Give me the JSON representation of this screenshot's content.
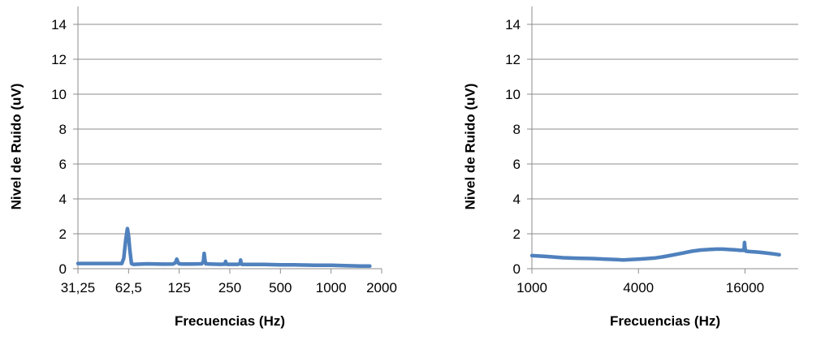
{
  "chart_data": [
    {
      "type": "line",
      "title": "",
      "xlabel": "Frecuencias (Hz)",
      "ylabel": "Nivel de Ruido (uV)",
      "x_scale": "log2",
      "xlim": [
        31.25,
        2000
      ],
      "ylim": [
        0,
        14
      ],
      "y_ticks": [
        "0",
        "2",
        "4",
        "6",
        "8",
        "10",
        "12",
        "14"
      ],
      "x_ticks": [
        {
          "value": 31.25,
          "label": "31,25"
        },
        {
          "value": 62.5,
          "label": "62,5"
        },
        {
          "value": 125,
          "label": "125"
        },
        {
          "value": 250,
          "label": "250"
        },
        {
          "value": 500,
          "label": "500"
        },
        {
          "value": 1000,
          "label": "1000"
        },
        {
          "value": 2000,
          "label": "2000"
        }
      ],
      "grid": "horizontal",
      "color": "#4f81bd",
      "series": [
        {
          "x": [
            31.25,
            40,
            50,
            57,
            58.5,
            60,
            61.5,
            62.5,
            63.5,
            65,
            66.5,
            68,
            80,
            100,
            115,
            119,
            121,
            123,
            125,
            130,
            150,
            170,
            174,
            176,
            178,
            180,
            190,
            220,
            234,
            236,
            238,
            240,
            260,
            280,
            288,
            290,
            292,
            294,
            320,
            400,
            500,
            600,
            800,
            1000,
            1200,
            1500,
            1700
          ],
          "y": [
            0.3,
            0.3,
            0.3,
            0.3,
            0.6,
            1.6,
            2.3,
            1.9,
            1.1,
            0.3,
            0.25,
            0.25,
            0.28,
            0.26,
            0.27,
            0.35,
            0.55,
            0.35,
            0.28,
            0.27,
            0.27,
            0.28,
            0.4,
            0.88,
            0.45,
            0.28,
            0.27,
            0.25,
            0.26,
            0.42,
            0.27,
            0.25,
            0.25,
            0.25,
            0.3,
            0.5,
            0.3,
            0.25,
            0.24,
            0.24,
            0.22,
            0.22,
            0.2,
            0.2,
            0.17,
            0.15,
            0.15
          ]
        }
      ]
    },
    {
      "type": "line",
      "title": "",
      "xlabel": "Frecuencias (Hz)",
      "ylabel": "Nivel de Ruido (uV)",
      "x_scale": "log2",
      "xlim": [
        1000,
        32000
      ],
      "ylim": [
        0,
        14
      ],
      "y_ticks": [
        "0",
        "2",
        "4",
        "6",
        "8",
        "10",
        "12",
        "14"
      ],
      "x_ticks": [
        {
          "value": 1000,
          "label": "1000"
        },
        {
          "value": 4000,
          "label": "4000"
        },
        {
          "value": 16000,
          "label": "16000"
        }
      ],
      "grid": "horizontal",
      "color": "#4f81bd",
      "series": [
        {
          "x": [
            1000,
            1200,
            1500,
            1800,
            2200,
            2600,
            3000,
            3300,
            3600,
            4000,
            4500,
            5000,
            5500,
            6000,
            7000,
            8000,
            9000,
            10000,
            11000,
            12000,
            13000,
            14000,
            15000,
            15800,
            15900,
            16000,
            16100,
            16300,
            17000,
            19000,
            21000,
            23000,
            25000
          ],
          "y": [
            0.75,
            0.7,
            0.63,
            0.6,
            0.58,
            0.55,
            0.52,
            0.5,
            0.52,
            0.55,
            0.58,
            0.62,
            0.68,
            0.75,
            0.88,
            1.0,
            1.07,
            1.1,
            1.12,
            1.12,
            1.1,
            1.08,
            1.05,
            1.05,
            1.5,
            1.2,
            1.02,
            1.0,
            0.98,
            0.95,
            0.9,
            0.85,
            0.8
          ]
        }
      ]
    }
  ]
}
